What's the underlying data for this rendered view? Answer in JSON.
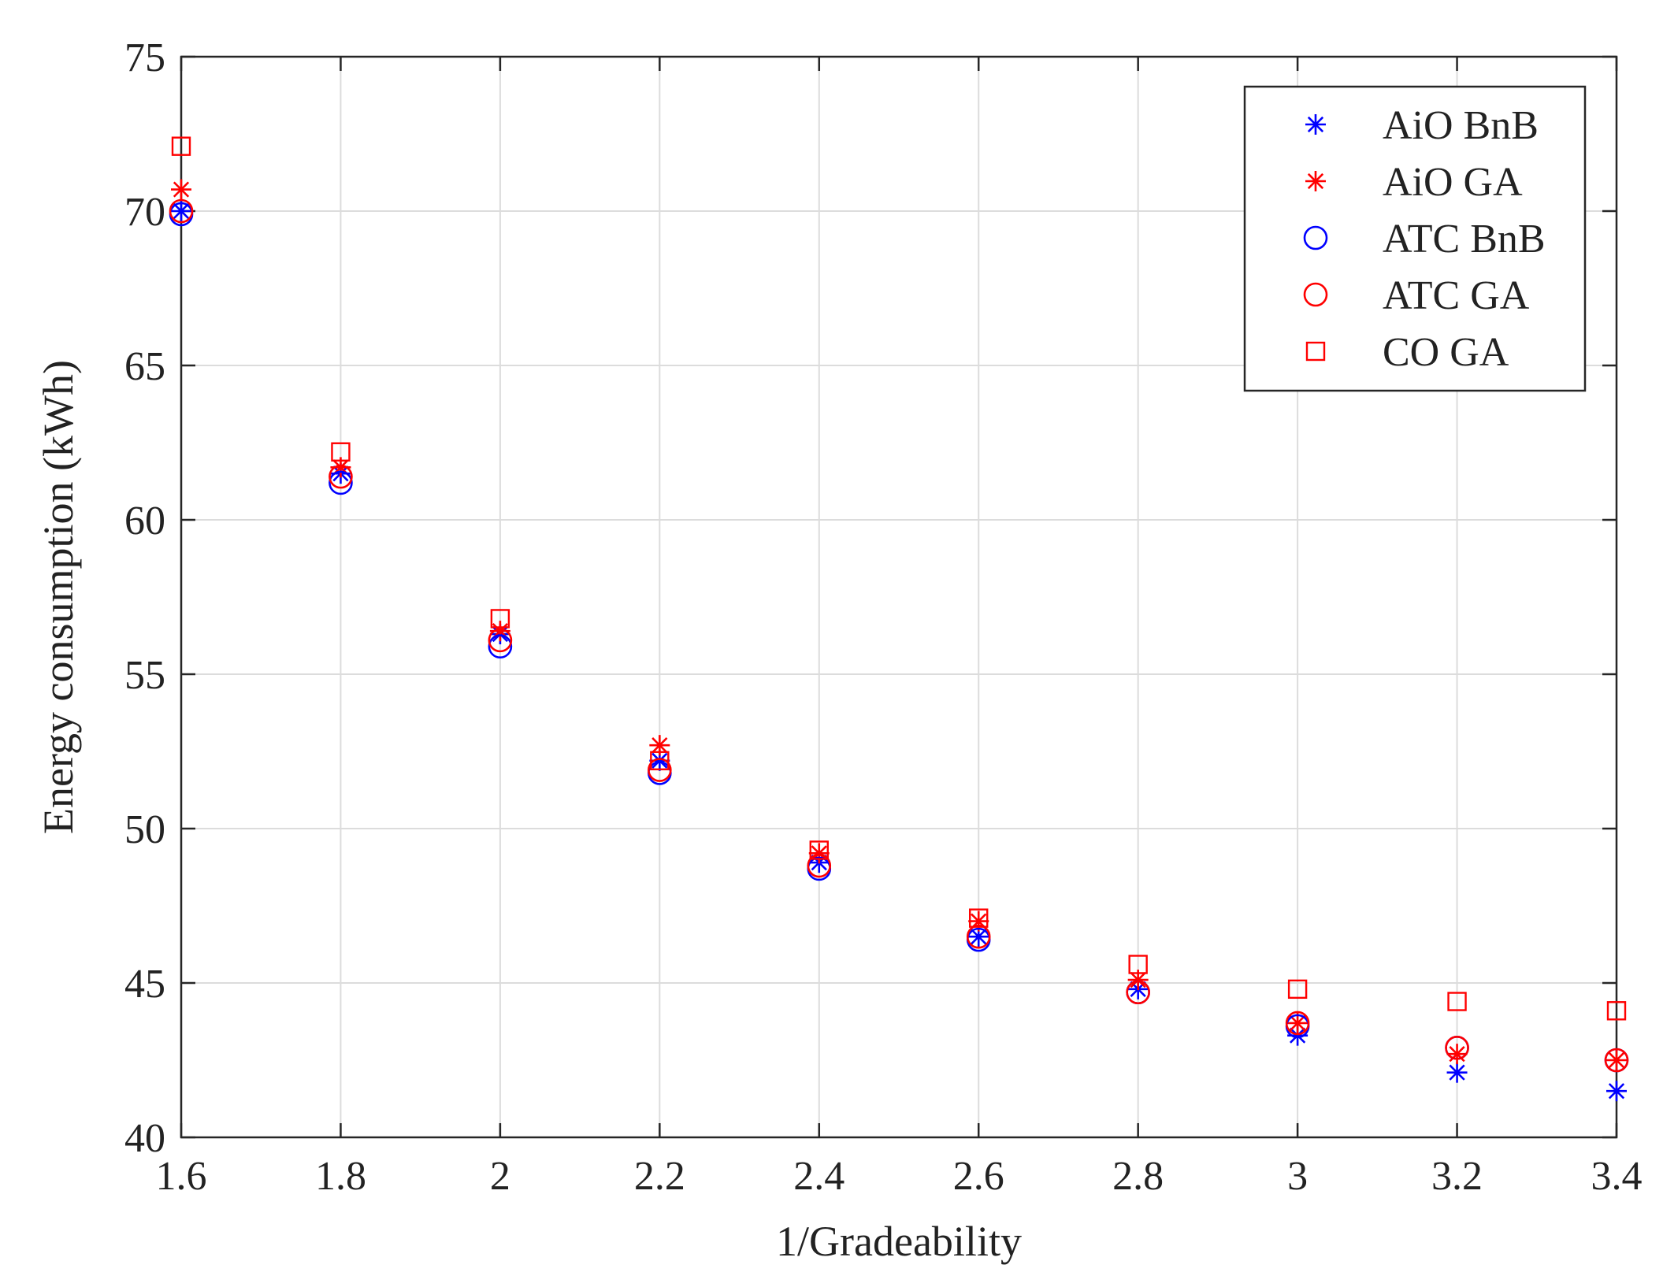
{
  "chart_data": {
    "type": "scatter",
    "title": "",
    "xlabel": "1/Gradeability",
    "ylabel": "Energy consumption (kWh)",
    "xlim": [
      1.6,
      3.4
    ],
    "ylim": [
      40,
      75
    ],
    "xticks": [
      1.6,
      1.8,
      2,
      2.2,
      2.4,
      2.6,
      2.8,
      3,
      3.2,
      3.4
    ],
    "xtick_labels": [
      "1.6",
      "1.8",
      "2",
      "2.2",
      "2.4",
      "2.6",
      "2.8",
      "3",
      "3.2",
      "3.4"
    ],
    "yticks": [
      40,
      45,
      50,
      55,
      60,
      65,
      70,
      75
    ],
    "ytick_labels": [
      "40",
      "45",
      "50",
      "55",
      "60",
      "65",
      "70",
      "75"
    ],
    "grid": true,
    "legend_position": "top-right",
    "x": [
      1.6,
      1.8,
      2.0,
      2.2,
      2.4,
      2.6,
      2.8,
      3.0,
      3.2,
      3.4
    ],
    "series": [
      {
        "name": "AiO BnB",
        "marker": "asterisk",
        "color": "#0000ff",
        "values": [
          70.0,
          61.5,
          56.3,
          52.2,
          48.9,
          46.5,
          44.8,
          43.3,
          42.1,
          41.5
        ]
      },
      {
        "name": "AiO GA",
        "marker": "asterisk",
        "color": "#ff0000",
        "values": [
          70.7,
          61.7,
          56.4,
          52.7,
          49.2,
          47.0,
          45.1,
          43.7,
          42.7,
          42.5
        ]
      },
      {
        "name": "ATC BnB",
        "marker": "circle",
        "color": "#0000ff",
        "values": [
          69.9,
          61.2,
          55.9,
          51.8,
          48.7,
          46.4,
          44.7,
          43.6,
          42.9,
          42.5
        ]
      },
      {
        "name": "ATC GA",
        "marker": "circle",
        "color": "#ff0000",
        "values": [
          70.0,
          61.4,
          56.1,
          51.9,
          48.8,
          46.5,
          44.7,
          43.7,
          42.9,
          42.5
        ]
      },
      {
        "name": "CO GA",
        "marker": "square",
        "color": "#ff0000",
        "values": [
          72.1,
          62.2,
          56.8,
          52.2,
          49.3,
          47.1,
          45.6,
          44.8,
          44.4,
          44.1
        ]
      }
    ]
  }
}
